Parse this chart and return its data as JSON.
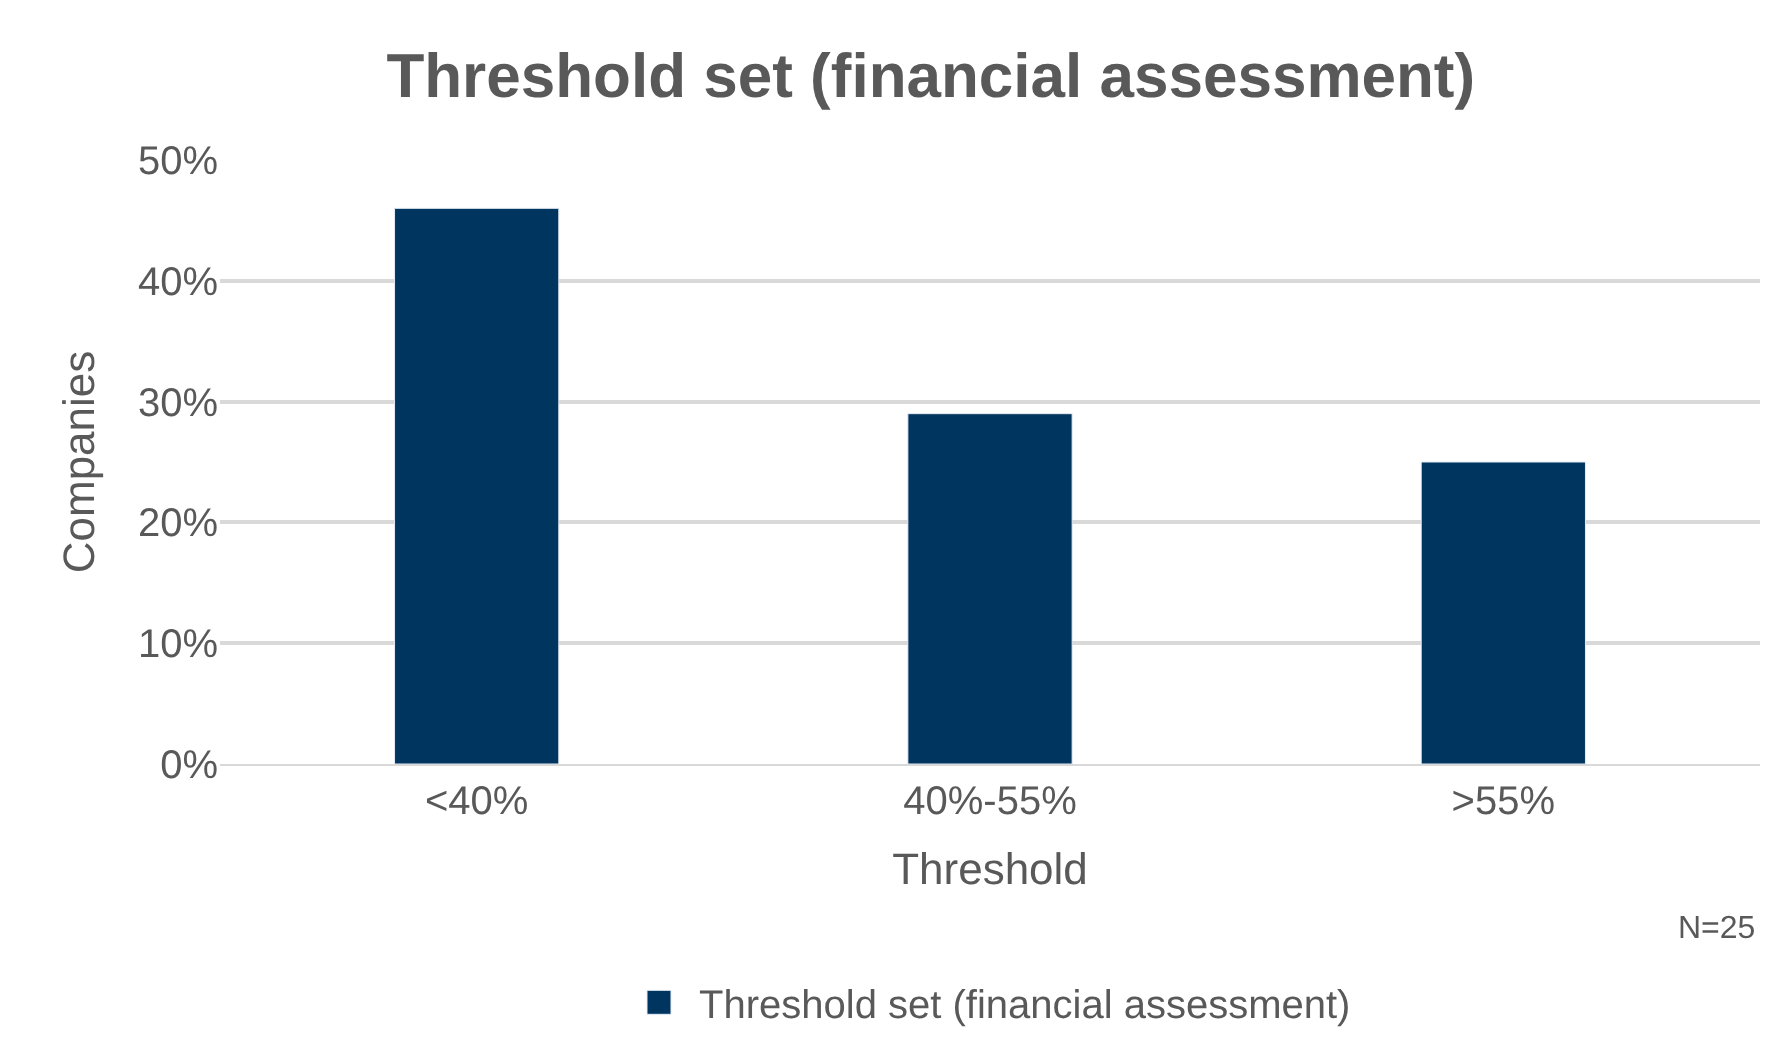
{
  "chart_data": {
    "type": "bar",
    "title": "Threshold set (financial assessment)",
    "xlabel": "Threshold",
    "ylabel": "Companies",
    "categories": [
      "<40%",
      "40%-55%",
      ">55%"
    ],
    "series": [
      {
        "name": "Threshold set (financial assessment)",
        "color": "#003560",
        "values": [
          46,
          29,
          25
        ]
      }
    ],
    "ylim": [
      0,
      50
    ],
    "yticks": [
      {
        "value": 0,
        "label": "0%"
      },
      {
        "value": 10,
        "label": "10%"
      },
      {
        "value": 20,
        "label": "20%"
      },
      {
        "value": 30,
        "label": "30%"
      },
      {
        "value": 40,
        "label": "40%"
      },
      {
        "value": 50,
        "label": "50%"
      }
    ],
    "grid": "y",
    "legend": "bottom",
    "annotations": [
      "N=25"
    ]
  }
}
